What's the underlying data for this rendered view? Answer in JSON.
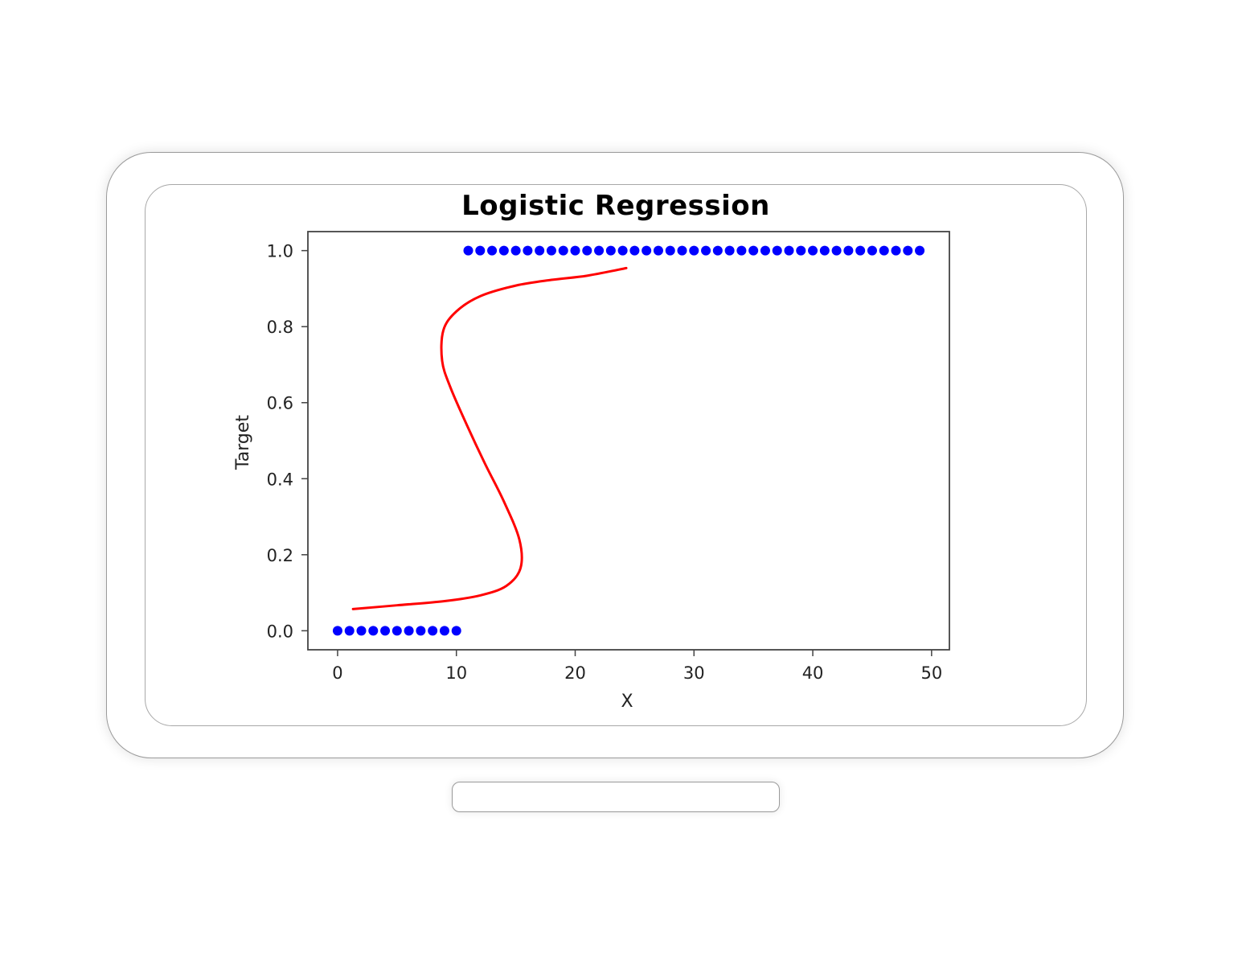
{
  "chart_data": {
    "type": "scatter",
    "title": "Logistic Regression",
    "xlabel": "X",
    "ylabel": "Target",
    "xlim": [
      -2.5,
      51.5
    ],
    "ylim": [
      -0.05,
      1.05
    ],
    "x_ticks": [
      0,
      10,
      20,
      30,
      40,
      50
    ],
    "x_tick_labels": [
      "0",
      "10",
      "20",
      "30",
      "40",
      "50"
    ],
    "y_ticks": [
      0.0,
      0.2,
      0.4,
      0.6,
      0.8,
      1.0
    ],
    "y_tick_labels": [
      "0.0",
      "0.2",
      "0.4",
      "0.6",
      "0.8",
      "1.0"
    ],
    "grid": false,
    "series": [
      {
        "kind": "scatter",
        "color": "#0000ff",
        "points": [
          [
            0,
            0
          ],
          [
            1,
            0
          ],
          [
            2,
            0
          ],
          [
            3,
            0
          ],
          [
            4,
            0
          ],
          [
            5,
            0
          ],
          [
            6,
            0
          ],
          [
            7,
            0
          ],
          [
            8,
            0
          ],
          [
            9,
            0
          ],
          [
            10,
            0
          ],
          [
            11,
            1
          ],
          [
            12,
            1
          ],
          [
            13,
            1
          ],
          [
            14,
            1
          ],
          [
            15,
            1
          ],
          [
            16,
            1
          ],
          [
            17,
            1
          ],
          [
            18,
            1
          ],
          [
            19,
            1
          ],
          [
            20,
            1
          ],
          [
            21,
            1
          ],
          [
            22,
            1
          ],
          [
            23,
            1
          ],
          [
            24,
            1
          ],
          [
            25,
            1
          ],
          [
            26,
            1
          ],
          [
            27,
            1
          ],
          [
            28,
            1
          ],
          [
            29,
            1
          ],
          [
            30,
            1
          ],
          [
            31,
            1
          ],
          [
            32,
            1
          ],
          [
            33,
            1
          ],
          [
            34,
            1
          ],
          [
            35,
            1
          ],
          [
            36,
            1
          ],
          [
            37,
            1
          ],
          [
            38,
            1
          ],
          [
            39,
            1
          ],
          [
            40,
            1
          ],
          [
            41,
            1
          ],
          [
            42,
            1
          ],
          [
            43,
            1
          ],
          [
            44,
            1
          ],
          [
            45,
            1
          ],
          [
            46,
            1
          ],
          [
            47,
            1
          ],
          [
            48,
            1
          ],
          [
            49,
            1
          ]
        ]
      },
      {
        "kind": "curve",
        "color": "#ff0000",
        "points": [
          [
            1.3,
            0.057
          ],
          [
            5.0,
            0.067
          ],
          [
            9.0,
            0.078
          ],
          [
            12.0,
            0.093
          ],
          [
            14.2,
            0.118
          ],
          [
            15.4,
            0.165
          ],
          [
            15.3,
            0.24
          ],
          [
            14.0,
            0.34
          ],
          [
            12.4,
            0.44
          ],
          [
            10.9,
            0.54
          ],
          [
            9.5,
            0.64
          ],
          [
            8.8,
            0.71
          ],
          [
            8.9,
            0.79
          ],
          [
            10.0,
            0.84
          ],
          [
            12.0,
            0.88
          ],
          [
            15.0,
            0.908
          ],
          [
            18.0,
            0.923
          ],
          [
            21.0,
            0.934
          ],
          [
            24.3,
            0.954
          ]
        ]
      }
    ]
  }
}
